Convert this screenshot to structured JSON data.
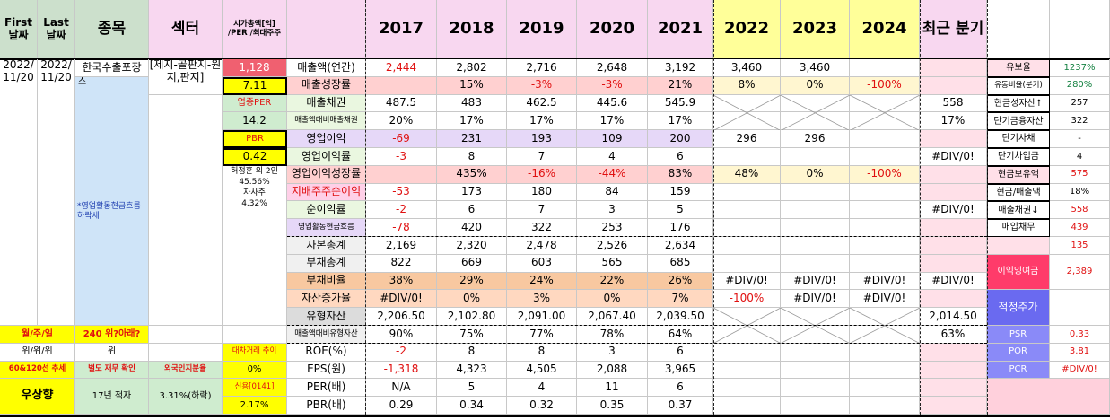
{
  "header": {
    "first_date": "First 날짜",
    "last_date": "Last 날짜",
    "stock": "종목",
    "sector": "섹터",
    "metric": "시가총액[억] /PER /최대주주",
    "years": [
      "2017",
      "2018",
      "2019",
      "2020",
      "2021",
      "2022",
      "2023",
      "2024"
    ],
    "recent": "최근 분기"
  },
  "left": {
    "first_date": "2022/ 11/20",
    "last_date": "2022/ 11/20",
    "stock_name": "한국수출포장",
    "stock_suffix": "스",
    "sector": "[제지-골판지-원지,판지]",
    "note": "*영업활동현금흐름 하락세",
    "mcap": "1,128",
    "per": "7.11",
    "sector_per_label": "업종PER",
    "sector_per": "14.2",
    "pbr_label": "PBR",
    "pbr": "0.42",
    "holder": "허정훈 외 2인",
    "holder_pct": "45.56%",
    "treasury_label": "자사주",
    "treasury_pct": "4.32%",
    "month_label": "월/주/일",
    "month_value": "240 위?아래?",
    "wi_label": "위/위/위",
    "wi_value": "위",
    "loan_label": "대차거래 추이",
    "loan_value": "0%",
    "trend_label": "60&120선 추세",
    "trend_value": "별도 재무 확인",
    "foreign_label": "외국인지분율",
    "foreign_value": "",
    "upward": "우상향",
    "consec": "17년 적자",
    "foreign_pct": "3.31%(하락)",
    "credit_label": "신용[0141]",
    "credit_value": "2.17%"
  },
  "rows": [
    {
      "label": "매출액(연간)",
      "v": [
        "2,444",
        "2,802",
        "2,716",
        "2,648",
        "3,192",
        "3,460",
        "3,460",
        ""
      ],
      "recent": ""
    },
    {
      "label": "매출성장률",
      "v": [
        "",
        "15%",
        "-3%",
        "-3%",
        "21%",
        "8%",
        "0%",
        "-100%"
      ],
      "recent": ""
    },
    {
      "label": "매출채권",
      "v": [
        "487.5",
        "483",
        "462.5",
        "445.6",
        "545.9",
        "",
        "",
        ""
      ],
      "recent": "558"
    },
    {
      "label": "매출액대비매출채권",
      "v": [
        "20%",
        "17%",
        "17%",
        "17%",
        "17%",
        "",
        "",
        ""
      ],
      "recent": "17%"
    },
    {
      "label": "영업이익",
      "v": [
        "-69",
        "231",
        "193",
        "109",
        "200",
        "296",
        "296",
        ""
      ],
      "recent": ""
    },
    {
      "label": "영업이익률",
      "v": [
        "-3",
        "8",
        "7",
        "4",
        "6",
        "",
        "",
        ""
      ],
      "recent": "#DIV/0!"
    },
    {
      "label": "영업이익성장률",
      "v": [
        "",
        "435%",
        "-16%",
        "-44%",
        "83%",
        "48%",
        "0%",
        "-100%"
      ],
      "recent": ""
    },
    {
      "label": "지배주주순이익",
      "v": [
        "-53",
        "173",
        "180",
        "84",
        "159",
        "",
        "",
        ""
      ],
      "recent": ""
    },
    {
      "label": "순이익률",
      "v": [
        "-2",
        "6",
        "7",
        "3",
        "5",
        "",
        "",
        ""
      ],
      "recent": "#DIV/0!"
    },
    {
      "label": "영업활동현금흐름",
      "v": [
        "-78",
        "420",
        "322",
        "253",
        "176",
        "",
        "",
        ""
      ],
      "recent": ""
    },
    {
      "label": "자본총계",
      "v": [
        "2,169",
        "2,320",
        "2,478",
        "2,526",
        "2,634",
        "",
        "",
        ""
      ],
      "recent": ""
    },
    {
      "label": "부채총계",
      "v": [
        "822",
        "669",
        "603",
        "565",
        "685",
        "",
        "",
        ""
      ],
      "recent": ""
    },
    {
      "label": "부채비율",
      "v": [
        "38%",
        "29%",
        "24%",
        "22%",
        "26%",
        "#DIV/0!",
        "#DIV/0!",
        "#DIV/0!"
      ],
      "recent": "#DIV/0!"
    },
    {
      "label": "자산증가율",
      "v": [
        "#DIV/0!",
        "0%",
        "3%",
        "0%",
        "7%",
        "-100%",
        "#DIV/0!",
        "#DIV/0!"
      ],
      "recent": ""
    },
    {
      "label": "유형자산",
      "v": [
        "2,206.50",
        "2,102.80",
        "2,091.00",
        "2,067.40",
        "2,039.50",
        "",
        "",
        ""
      ],
      "recent": "2,014.50"
    },
    {
      "label": "매출액대비유형자산",
      "v": [
        "90%",
        "75%",
        "77%",
        "78%",
        "64%",
        "",
        "",
        ""
      ],
      "recent": "63%"
    },
    {
      "label": "ROE(%)",
      "v": [
        "-2",
        "8",
        "8",
        "3",
        "6",
        "",
        "",
        ""
      ],
      "recent": ""
    },
    {
      "label": "EPS(원)",
      "v": [
        "-1,318",
        "4,323",
        "4,505",
        "2,088",
        "3,965",
        "",
        "",
        ""
      ],
      "recent": ""
    },
    {
      "label": "PER(배)",
      "v": [
        "N/A",
        "5",
        "4",
        "11",
        "6",
        "",
        "",
        ""
      ],
      "recent": ""
    },
    {
      "label": "PBR(배)",
      "v": [
        "0.29",
        "0.34",
        "0.32",
        "0.35",
        "0.37",
        "",
        "",
        ""
      ],
      "recent": ""
    }
  ],
  "right": [
    {
      "label": "유보율",
      "value": "1237%"
    },
    {
      "label": "유동비율(분기)",
      "value": "280%"
    },
    {
      "label": "현금성자산↑",
      "value": "257"
    },
    {
      "label": "단기금융자산",
      "value": "322"
    },
    {
      "label": "단기사채",
      "value": "-"
    },
    {
      "label": "단기차입금",
      "value": "4"
    },
    {
      "label": "현금보유액",
      "value": "575"
    },
    {
      "label": "현금/매출액",
      "value": "18%"
    },
    {
      "label": "매출채권↓",
      "value": "558"
    },
    {
      "label": "매입채무",
      "value": "439"
    },
    {
      "label": "",
      "value": "135"
    },
    {
      "label": "이익잉여금",
      "value": "2,389"
    },
    {
      "label": "적정주가",
      "value": ""
    },
    {
      "label": "PSR",
      "value": "0.33"
    },
    {
      "label": "POR",
      "value": "3.81"
    },
    {
      "label": "PCR",
      "value": "#DIV/0!"
    }
  ]
}
